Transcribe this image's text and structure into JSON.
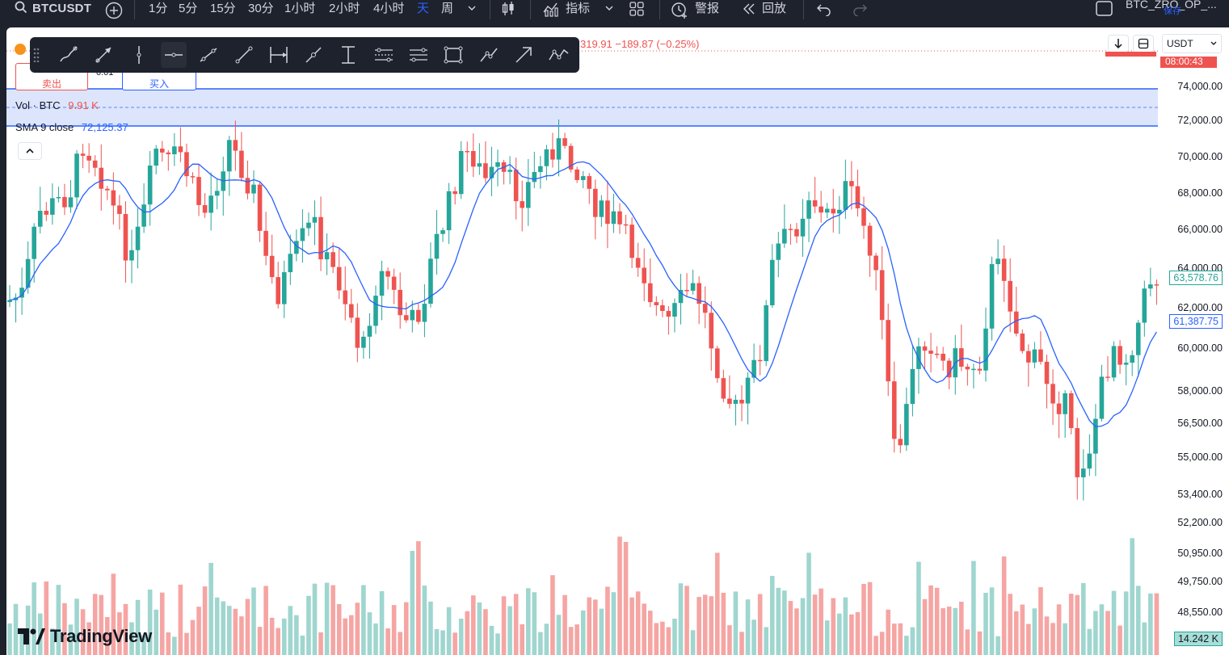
{
  "topbar": {
    "symbol": "BTCUSDT",
    "intervals": [
      "1分",
      "5分",
      "15分",
      "30分",
      "1小时",
      "2小时",
      "4小时",
      "天",
      "周"
    ],
    "active_interval": "天",
    "indicators_label": "指标",
    "alert_label": "警报",
    "replay_label": "回放",
    "layout_name": "BTC_ZRO_OP_...",
    "save_label": "保存"
  },
  "ohlc": {
    "change_text": "319.91 −189.87 (−0.25%)"
  },
  "trade": {
    "sell_label": "卖出",
    "buy_label": "买入",
    "spread": "0.01"
  },
  "legend": {
    "vol_label": "Vol · BTC",
    "vol_value": "9.91 K",
    "sma_label": "SMA 9 close",
    "sma_value": "72,125.37"
  },
  "axis": {
    "currency": "USDT",
    "countdown": "08:00:43",
    "price_ticks": [
      "74,000.00",
      "72,000.00",
      "70,000.00",
      "68,000.00",
      "66,000.00",
      "64,000.00",
      "62,000.00",
      "60,000.00",
      "58,000.00",
      "56,500.00",
      "55,000.00",
      "53,400.00",
      "52,200.00",
      "50,950.00",
      "49,750.00",
      "48,550.00"
    ],
    "last_price": "63,578.76",
    "sma_price": "61,387.75",
    "volume_value": "14.242 K"
  },
  "branding": {
    "logo_text": "TradingView"
  },
  "colors": {
    "up": "#26a69a",
    "down": "#ef5350",
    "up_vol": "#9fd6cf",
    "down_vol": "#f5a5a3",
    "sma": "#2962ff",
    "band": "#d6e1fb"
  },
  "draw_tools": [
    "brush-icon",
    "arrow-marker-icon",
    "vertical-line-icon",
    "horizontal-ray-icon",
    "trend-angle-icon",
    "trend-line-icon",
    "date-range-icon",
    "info-line-icon",
    "price-range-icon",
    "parallel-channel-icon",
    "regression-trend-icon",
    "rectangle-icon",
    "path-icon",
    "arrow-icon",
    "polyline-icon"
  ]
}
